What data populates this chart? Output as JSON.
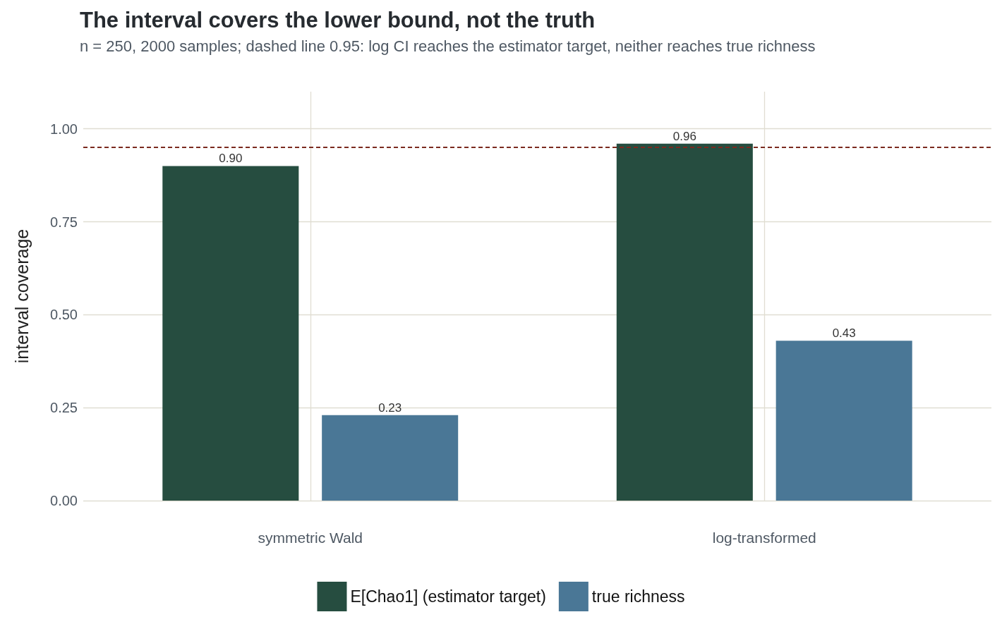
{
  "chart_data": {
    "type": "bar",
    "title": "The interval covers the lower bound, not the truth",
    "subtitle": "n = 250, 2000 samples; dashed line 0.95: log CI reaches the estimator target, neither reaches true richness",
    "ylabel": "interval coverage",
    "categories": [
      "symmetric Wald",
      "log-transformed"
    ],
    "series": [
      {
        "name": "E[Chao1] (estimator target)",
        "color": "#264d40",
        "values": [
          0.9,
          0.96
        ],
        "value_labels": [
          "0.90",
          "0.96"
        ]
      },
      {
        "name": "true richness",
        "color": "#4a7796",
        "values": [
          0.23,
          0.43
        ],
        "value_labels": [
          "0.23",
          "0.43"
        ]
      }
    ],
    "ylim": [
      0,
      1.1
    ],
    "yticks": [
      {
        "value": 0,
        "label": "0.00"
      },
      {
        "value": 0.25,
        "label": "0.25"
      },
      {
        "value": 0.5,
        "label": "0.50"
      },
      {
        "value": 0.75,
        "label": "0.75"
      },
      {
        "value": 1,
        "label": "1.00"
      }
    ],
    "ref_lines": [
      {
        "axis": "y",
        "value": 0.95,
        "label": null,
        "color": "#7b2a1f",
        "line_style": "dashed"
      }
    ],
    "grid": true,
    "legend": "bottom"
  }
}
